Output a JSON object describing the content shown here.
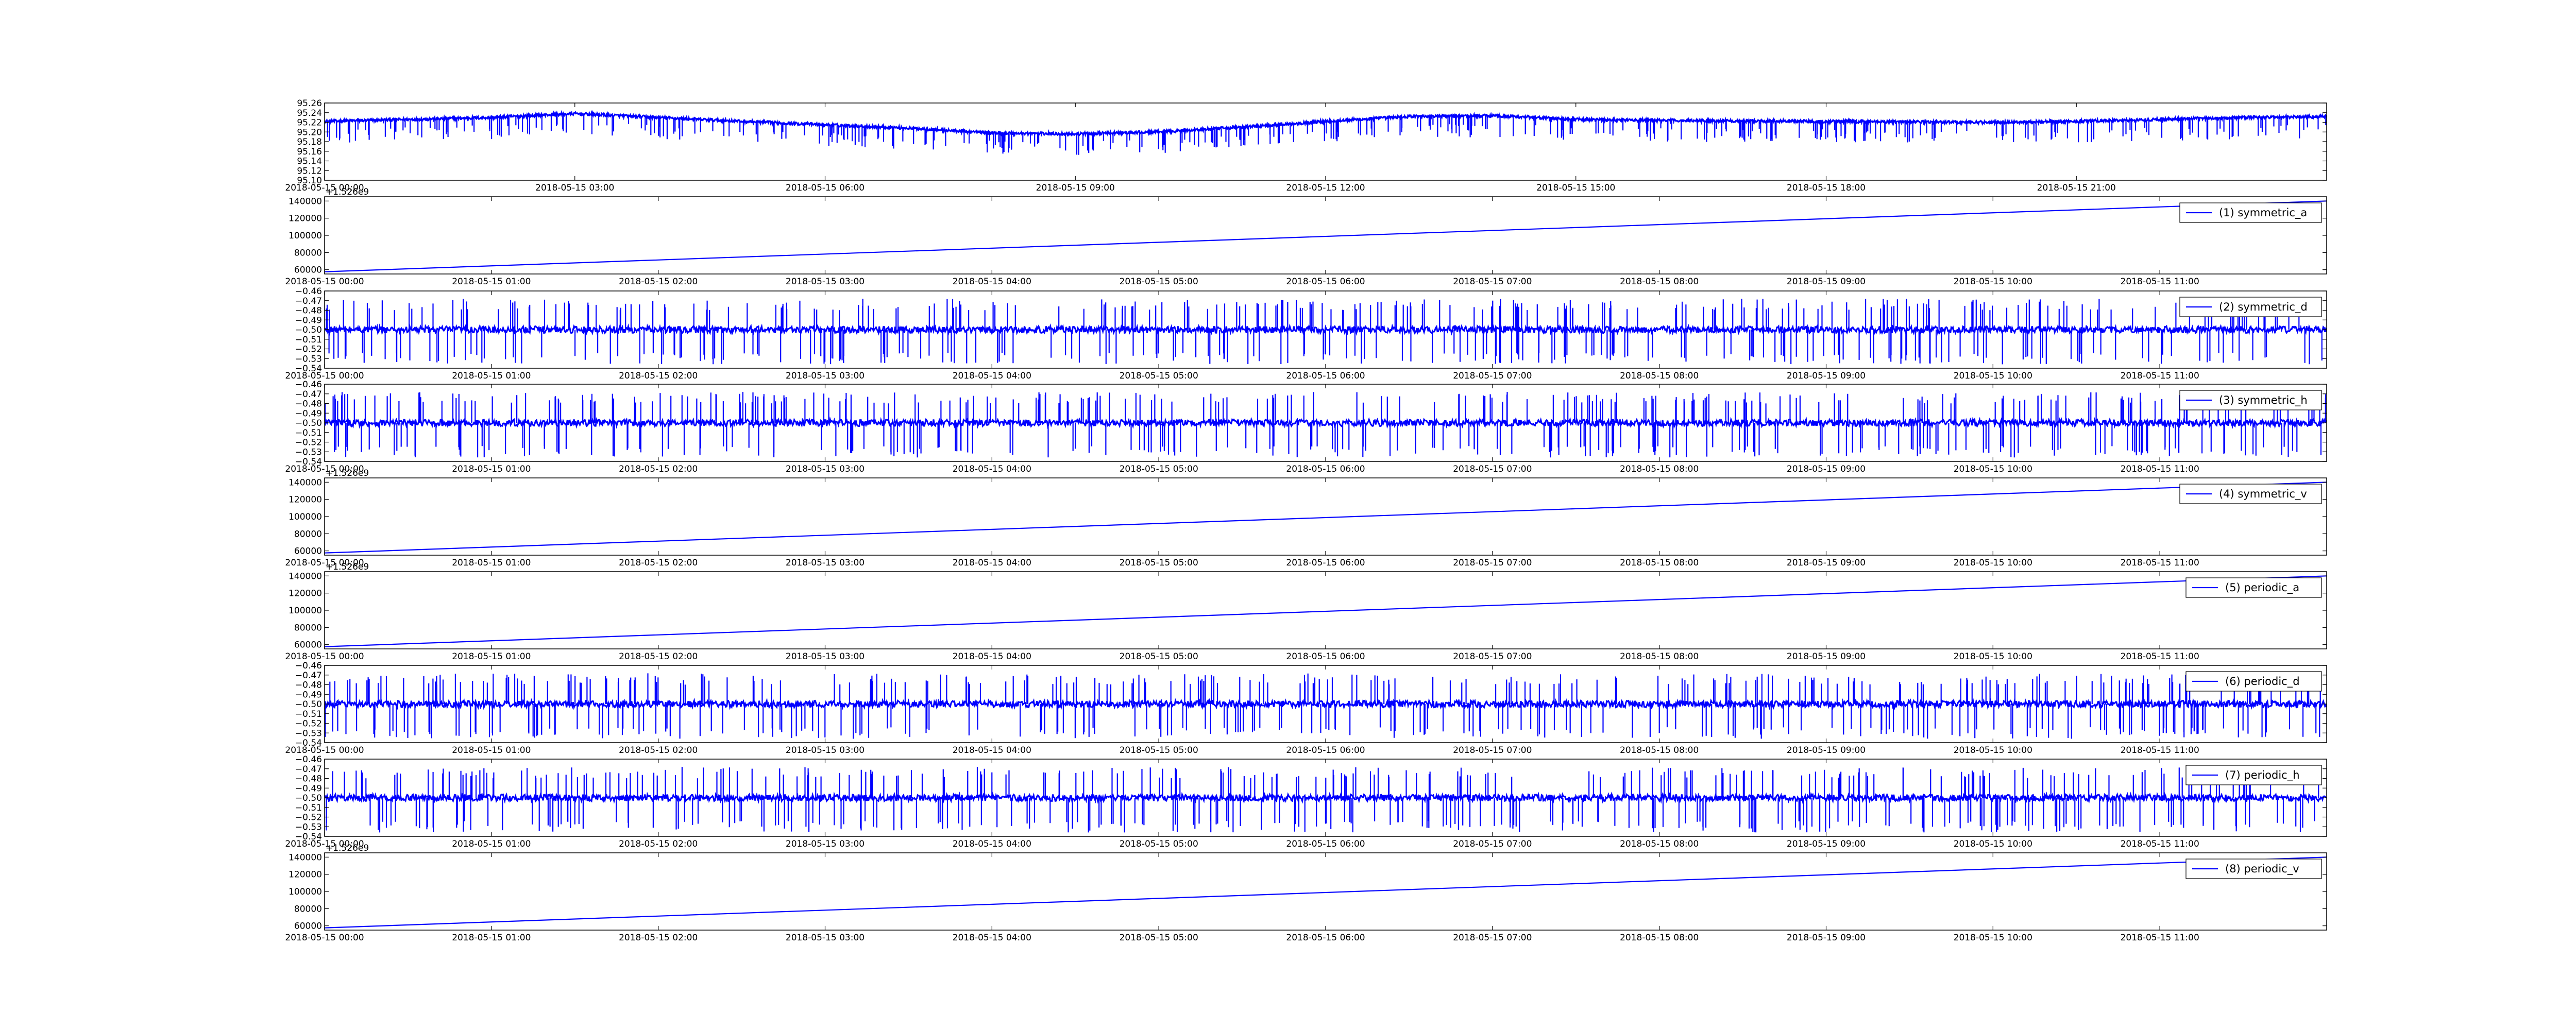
{
  "colors": {
    "series": "#0000ff",
    "axes": "#000000",
    "background": "#ffffff"
  },
  "chart_data": [
    {
      "type": "line",
      "title": "",
      "xlabel": "",
      "ylabel": "",
      "x_range": [
        "2018-05-15 00:00",
        "2018-05-16 00:00"
      ],
      "ylim": [
        95.1,
        95.26
      ],
      "y_ticks": [
        "95.26",
        "95.24",
        "95.22",
        "95.20",
        "95.18",
        "95.16",
        "95.14",
        "95.12",
        "95.10"
      ],
      "x_ticks": [
        "2018-05-15 00:00",
        "2018-05-15 03:00",
        "2018-05-15 06:00",
        "2018-05-15 09:00",
        "2018-05-15 12:00",
        "2018-05-15 15:00",
        "2018-05-15 18:00",
        "2018-05-15 21:00"
      ],
      "grid": false,
      "legend": null,
      "baseline": [
        [
          0,
          95.222
        ],
        [
          1,
          95.226
        ],
        [
          2,
          95.23
        ],
        [
          3,
          95.238
        ],
        [
          4,
          95.23
        ],
        [
          5,
          95.222
        ],
        [
          6,
          95.215
        ],
        [
          7,
          95.208
        ],
        [
          8,
          95.198
        ],
        [
          9,
          95.196
        ],
        [
          10,
          95.2
        ],
        [
          11,
          95.21
        ],
        [
          12,
          95.222
        ],
        [
          13,
          95.232
        ],
        [
          14,
          95.234
        ],
        [
          15,
          95.226
        ],
        [
          16,
          95.224
        ],
        [
          17,
          95.223
        ],
        [
          18,
          95.222
        ],
        [
          19,
          95.221
        ],
        [
          20,
          95.22
        ],
        [
          21,
          95.222
        ],
        [
          22,
          95.226
        ],
        [
          23,
          95.23
        ],
        [
          24,
          95.232
        ]
      ],
      "dip_depth": 0.045,
      "noise_amplitude": 0.006
    },
    {
      "type": "line",
      "offset_text": "+1.526e9",
      "x_range": [
        "2018-05-15 00:00",
        "2018-05-15 12:00"
      ],
      "ylim": [
        55000,
        145000
      ],
      "y_ticks": [
        "140000",
        "120000",
        "100000",
        "80000",
        "60000"
      ],
      "x_ticks": [
        "2018-05-15 00:00",
        "2018-05-15 01:00",
        "2018-05-15 02:00",
        "2018-05-15 03:00",
        "2018-05-15 04:00",
        "2018-05-15 05:00",
        "2018-05-15 06:00",
        "2018-05-15 07:00",
        "2018-05-15 08:00",
        "2018-05-15 09:00",
        "2018-05-15 10:00",
        "2018-05-15 11:00"
      ],
      "series": [
        {
          "name": "(1) symmetric_a",
          "start": 57600,
          "end": 140000
        }
      ],
      "legend": "top-right"
    },
    {
      "type": "line",
      "x_range": [
        "2018-05-15 00:00",
        "2018-05-15 12:00"
      ],
      "ylim": [
        -0.54,
        -0.46
      ],
      "y_ticks": [
        "−0.46",
        "−0.47",
        "−0.48",
        "−0.49",
        "−0.50",
        "−0.51",
        "−0.52",
        "−0.53",
        "−0.54"
      ],
      "x_ticks": [
        "2018-05-15 00:00",
        "2018-05-15 01:00",
        "2018-05-15 02:00",
        "2018-05-15 03:00",
        "2018-05-15 04:00",
        "2018-05-15 05:00",
        "2018-05-15 06:00",
        "2018-05-15 07:00",
        "2018-05-15 08:00",
        "2018-05-15 09:00",
        "2018-05-15 10:00",
        "2018-05-15 11:00"
      ],
      "series": [
        {
          "name": "(2) symmetric_d",
          "center": -0.5,
          "noise": 0.0035,
          "spike_range": [
            -0.536,
            -0.468
          ]
        }
      ],
      "legend": "top-right"
    },
    {
      "type": "line",
      "x_range": [
        "2018-05-15 00:00",
        "2018-05-15 12:00"
      ],
      "ylim": [
        -0.54,
        -0.46
      ],
      "y_ticks": [
        "−0.46",
        "−0.47",
        "−0.48",
        "−0.49",
        "−0.50",
        "−0.51",
        "−0.52",
        "−0.53",
        "−0.54"
      ],
      "x_ticks": [
        "2018-05-15 00:00",
        "2018-05-15 01:00",
        "2018-05-15 02:00",
        "2018-05-15 03:00",
        "2018-05-15 04:00",
        "2018-05-15 05:00",
        "2018-05-15 06:00",
        "2018-05-15 07:00",
        "2018-05-15 08:00",
        "2018-05-15 09:00",
        "2018-05-15 10:00",
        "2018-05-15 11:00"
      ],
      "series": [
        {
          "name": "(3) symmetric_h",
          "center": -0.5,
          "noise": 0.0035,
          "spike_range": [
            -0.536,
            -0.468
          ]
        }
      ],
      "legend": "top-right"
    },
    {
      "type": "line",
      "offset_text": "+1.526e9",
      "x_range": [
        "2018-05-15 00:00",
        "2018-05-15 12:00"
      ],
      "ylim": [
        55000,
        145000
      ],
      "y_ticks": [
        "140000",
        "120000",
        "100000",
        "80000",
        "60000"
      ],
      "x_ticks": [
        "2018-05-15 00:00",
        "2018-05-15 01:00",
        "2018-05-15 02:00",
        "2018-05-15 03:00",
        "2018-05-15 04:00",
        "2018-05-15 05:00",
        "2018-05-15 06:00",
        "2018-05-15 07:00",
        "2018-05-15 08:00",
        "2018-05-15 09:00",
        "2018-05-15 10:00",
        "2018-05-15 11:00"
      ],
      "series": [
        {
          "name": "(4) symmetric_v",
          "start": 57600,
          "end": 140000
        }
      ],
      "legend": "top-right"
    },
    {
      "type": "line",
      "offset_text": "+1.526e9",
      "x_range": [
        "2018-05-15 00:00",
        "2018-05-15 12:00"
      ],
      "ylim": [
        55000,
        145000
      ],
      "y_ticks": [
        "140000",
        "120000",
        "100000",
        "80000",
        "60000"
      ],
      "x_ticks": [
        "2018-05-15 00:00",
        "2018-05-15 01:00",
        "2018-05-15 02:00",
        "2018-05-15 03:00",
        "2018-05-15 04:00",
        "2018-05-15 05:00",
        "2018-05-15 06:00",
        "2018-05-15 07:00",
        "2018-05-15 08:00",
        "2018-05-15 09:00",
        "2018-05-15 10:00",
        "2018-05-15 11:00"
      ],
      "series": [
        {
          "name": "(5) periodic_a",
          "start": 57600,
          "end": 140000
        }
      ],
      "legend": "top-right"
    },
    {
      "type": "line",
      "x_range": [
        "2018-05-15 00:00",
        "2018-05-15 12:00"
      ],
      "ylim": [
        -0.54,
        -0.46
      ],
      "y_ticks": [
        "−0.46",
        "−0.47",
        "−0.48",
        "−0.49",
        "−0.50",
        "−0.51",
        "−0.52",
        "−0.53",
        "−0.54"
      ],
      "x_ticks": [
        "2018-05-15 00:00",
        "2018-05-15 01:00",
        "2018-05-15 02:00",
        "2018-05-15 03:00",
        "2018-05-15 04:00",
        "2018-05-15 05:00",
        "2018-05-15 06:00",
        "2018-05-15 07:00",
        "2018-05-15 08:00",
        "2018-05-15 09:00",
        "2018-05-15 10:00",
        "2018-05-15 11:00"
      ],
      "series": [
        {
          "name": "(6) periodic_d",
          "center": -0.5,
          "noise": 0.0035,
          "spike_range": [
            -0.536,
            -0.468
          ]
        }
      ],
      "legend": "top-right"
    },
    {
      "type": "line",
      "x_range": [
        "2018-05-15 00:00",
        "2018-05-15 12:00"
      ],
      "ylim": [
        -0.54,
        -0.46
      ],
      "y_ticks": [
        "−0.46",
        "−0.47",
        "−0.48",
        "−0.49",
        "−0.50",
        "−0.51",
        "−0.52",
        "−0.53",
        "−0.54"
      ],
      "x_ticks": [
        "2018-05-15 00:00",
        "2018-05-15 01:00",
        "2018-05-15 02:00",
        "2018-05-15 03:00",
        "2018-05-15 04:00",
        "2018-05-15 05:00",
        "2018-05-15 06:00",
        "2018-05-15 07:00",
        "2018-05-15 08:00",
        "2018-05-15 09:00",
        "2018-05-15 10:00",
        "2018-05-15 11:00"
      ],
      "series": [
        {
          "name": "(7) periodic_h",
          "center": -0.5,
          "noise": 0.0035,
          "spike_range": [
            -0.536,
            -0.468
          ]
        }
      ],
      "legend": "top-right"
    },
    {
      "type": "line",
      "offset_text": "+1.526e9",
      "x_range": [
        "2018-05-15 00:00",
        "2018-05-15 12:00"
      ],
      "ylim": [
        55000,
        145000
      ],
      "y_ticks": [
        "140000",
        "120000",
        "100000",
        "80000",
        "60000"
      ],
      "x_ticks": [
        "2018-05-15 00:00",
        "2018-05-15 01:00",
        "2018-05-15 02:00",
        "2018-05-15 03:00",
        "2018-05-15 04:00",
        "2018-05-15 05:00",
        "2018-05-15 06:00",
        "2018-05-15 07:00",
        "2018-05-15 08:00",
        "2018-05-15 09:00",
        "2018-05-15 10:00",
        "2018-05-15 11:00"
      ],
      "series": [
        {
          "name": "(8) periodic_v",
          "start": 57600,
          "end": 140000
        }
      ],
      "legend": "top-right"
    }
  ]
}
